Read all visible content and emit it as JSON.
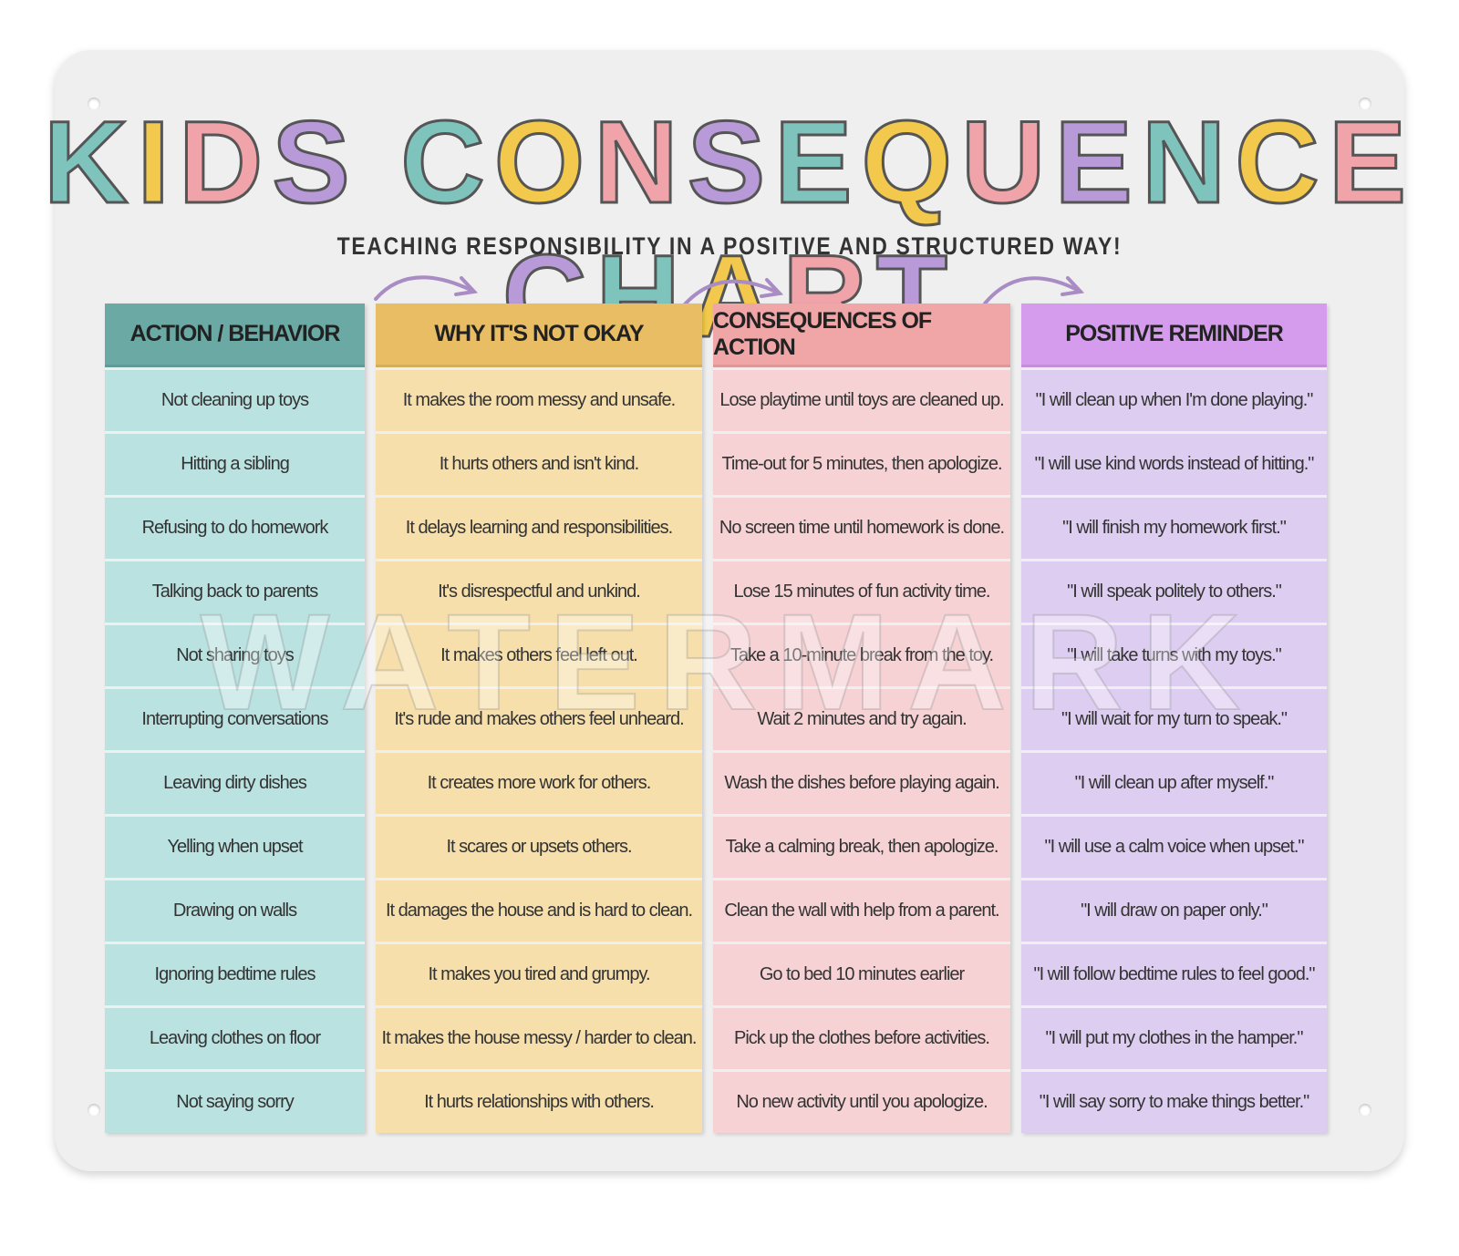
{
  "header": {
    "title": "KIDS CONSEQUENCE CHART",
    "subtitle": "TEACHING RESPONSIBILITY IN A POSITIVE AND STRUCTURED WAY!"
  },
  "watermark": "WATERMARK",
  "table": {
    "columns": [
      {
        "header": "ACTION / BEHAVIOR",
        "cells": [
          "Not cleaning up toys",
          "Hitting a sibling",
          "Refusing to do homework",
          "Talking back to parents",
          "Not sharing toys",
          "Interrupting conversations",
          "Leaving dirty dishes",
          "Yelling when upset",
          "Drawing on walls",
          "Ignoring bedtime rules",
          "Leaving clothes on floor",
          "Not saying sorry"
        ]
      },
      {
        "header": "WHY IT'S NOT OKAY",
        "cells": [
          "It makes the room messy and unsafe.",
          "It hurts others and isn't kind.",
          "It delays learning and responsibilities.",
          "It's disrespectful and unkind.",
          "It makes others feel left out.",
          "It's rude and makes others feel unheard.",
          "It creates more work for others.",
          "It scares or upsets others.",
          "It damages the house and is hard to clean.",
          "It makes you tired and grumpy.",
          "It makes the house messy / harder to clean.",
          "It hurts relationships with others."
        ]
      },
      {
        "header": "CONSEQUENCES OF ACTION",
        "cells": [
          "Lose playtime until toys are cleaned up.",
          "Time-out for 5 minutes, then apologize.",
          "No screen time until homework is done.",
          "Lose 15 minutes of fun activity time.",
          "Take a 10-minute break from the toy.",
          "Wait 2 minutes and try again.",
          "Wash the dishes before playing again.",
          "Take a calming break, then apologize.",
          "Clean the wall with help from a parent.",
          "Go to bed 10 minutes earlier",
          "Pick up the clothes before activities.",
          "No new activity until you apologize."
        ]
      },
      {
        "header": "POSITIVE REMINDER",
        "cells": [
          "\"I will clean up when I'm done playing.\"",
          "\"I will use kind words instead of hitting.\"",
          "\"I will finish my homework first.\"",
          "\"I will speak politely to others.\"",
          "\"I will take turns with my toys.\"",
          "\"I will wait for my turn to speak.\"",
          "\"I will clean up after myself.\"",
          "\"I will use a calm voice when upset.\"",
          "\"I will draw on paper only.\"",
          "\"I will follow bedtime rules to feel good.\"",
          "\"I will put my clothes in the hamper.\"",
          "\"I will say sorry to make things better.\""
        ]
      }
    ]
  }
}
